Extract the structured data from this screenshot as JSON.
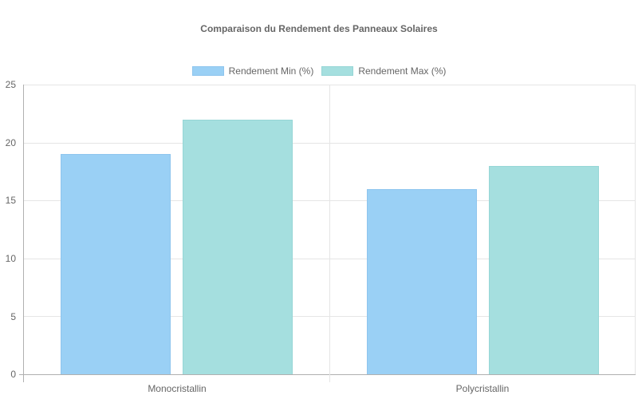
{
  "chart_data": {
    "type": "bar",
    "title": "Comparaison du Rendement des Panneaux Solaires",
    "categories": [
      "Monocristallin",
      "Polycristallin"
    ],
    "series": [
      {
        "name": "Rendement Min (%)",
        "values": [
          19,
          16
        ],
        "color": "#9ad0f5",
        "border": "#8ec5ee"
      },
      {
        "name": "Rendement Max (%)",
        "values": [
          22,
          18
        ],
        "color": "#a5dfdf",
        "border": "#96d6d6"
      }
    ],
    "xlabel": "",
    "ylabel": "",
    "ylim": [
      0,
      25
    ],
    "yticks": [
      "25",
      "20",
      "15",
      "10",
      "5",
      "0"
    ],
    "grid": true,
    "legend_position": "top"
  }
}
